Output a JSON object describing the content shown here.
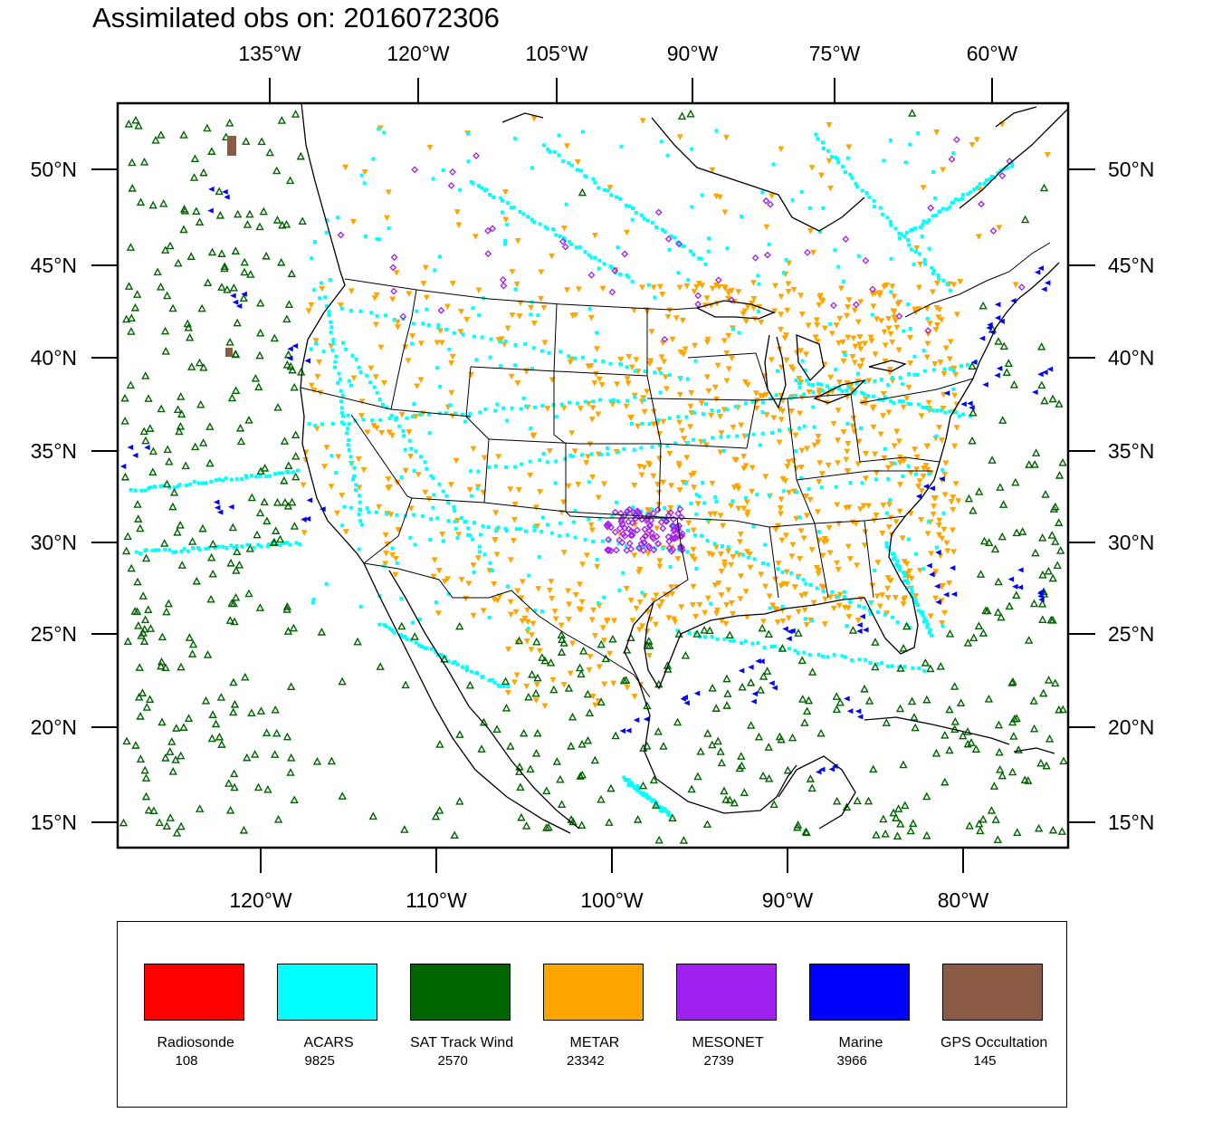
{
  "title": "Assimilated obs on: 2016072306",
  "top_lon_labels": [
    "135°W",
    "120°W",
    "105°W",
    "90°W",
    "75°W",
    "60°W"
  ],
  "bottom_lon_labels": [
    "120°W",
    "110°W",
    "100°W",
    "90°W",
    "80°W"
  ],
  "lat_labels": [
    "50°N",
    "45°N",
    "40°N",
    "35°N",
    "30°N",
    "25°N",
    "20°N",
    "15°N"
  ],
  "legend": [
    {
      "name": "Radiosonde",
      "count": "108",
      "color": "#ff0000"
    },
    {
      "name": "ACARS",
      "count": "9825",
      "color": "#00ffff"
    },
    {
      "name": "SAT Track Wind",
      "count": "2570",
      "color": "#006400"
    },
    {
      "name": "METAR",
      "count": "23342",
      "color": "#ffa500"
    },
    {
      "name": "MESONET",
      "count": "2739",
      "color": "#a020f0"
    },
    {
      "name": "Marine",
      "count": "3966",
      "color": "#0000ff"
    },
    {
      "name": "GPS Occultation",
      "count": "145",
      "color": "#8b5a44"
    }
  ],
  "map": {
    "lat_range": [
      14,
      54
    ],
    "lon_range_bottom": [
      -128,
      -74
    ],
    "marker_colors": {
      "acars": "#00ffff",
      "sat": "#006400",
      "metar": "#ffa500",
      "mesonet": "#a020f0",
      "marine": "#0000ff",
      "gps": "#8b5a44"
    }
  }
}
